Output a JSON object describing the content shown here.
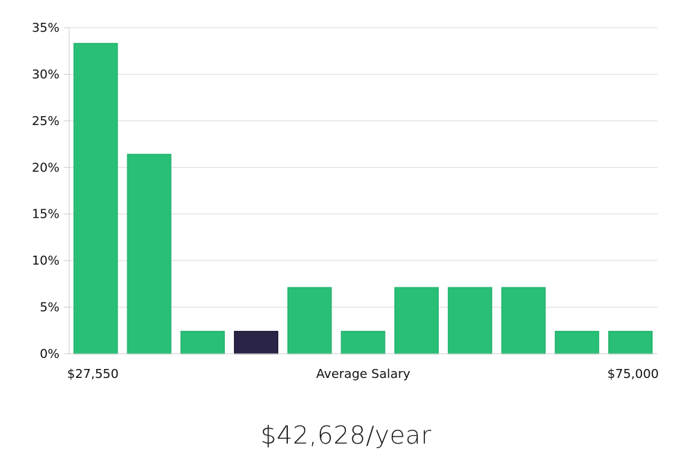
{
  "chart_data": {
    "type": "bar",
    "title": "",
    "xlabel": "Average Salary",
    "ylabel": "",
    "x_min_label": "$27,550",
    "x_max_label": "$75,000",
    "ylim": [
      0,
      35
    ],
    "yticks": [
      0,
      5,
      10,
      15,
      20,
      25,
      30,
      35
    ],
    "ytick_labels": [
      "0%",
      "5%",
      "10%",
      "15%",
      "20%",
      "25%",
      "30%",
      "35%"
    ],
    "values": [
      33.3,
      21.4,
      2.4,
      2.4,
      7.1,
      2.4,
      7.1,
      7.1,
      7.1,
      2.4,
      2.4
    ],
    "highlight_index": 3,
    "colors": {
      "bar": "#2abf76",
      "highlight": "#2a2547"
    },
    "grid": true
  },
  "salary_label": "$42,628/year"
}
